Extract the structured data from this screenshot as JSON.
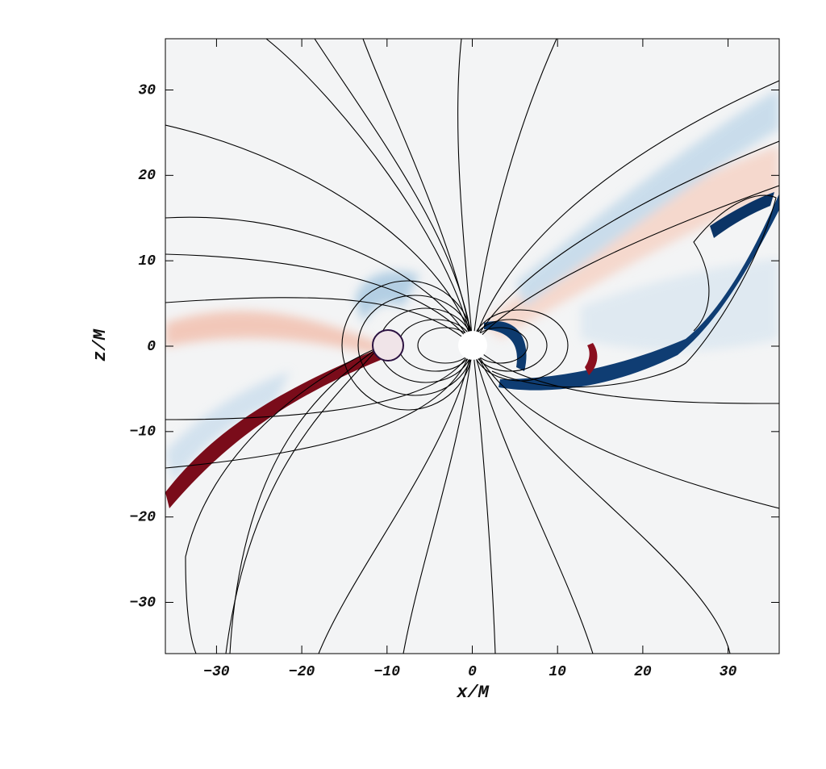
{
  "chart_data": {
    "type": "field",
    "x_label": "x/M",
    "y_label": "z/M",
    "xlim": [
      -36,
      36
    ],
    "ylim": [
      -36,
      36
    ],
    "xticks": [
      {
        "value": -30,
        "label": "−30"
      },
      {
        "value": -20,
        "label": "−20"
      },
      {
        "value": -10,
        "label": "−10"
      },
      0,
      10,
      20,
      30
    ],
    "yticks": [
      {
        "value": -30,
        "label": "−30"
      },
      {
        "value": -20,
        "label": "−20"
      },
      {
        "value": -10,
        "label": "−10"
      },
      0,
      10,
      20,
      30
    ]
  }
}
